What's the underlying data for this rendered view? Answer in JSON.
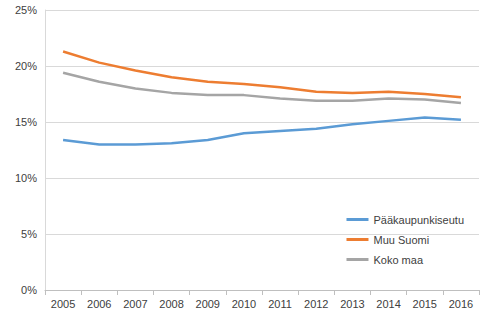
{
  "chart_data": {
    "type": "line",
    "categories": [
      "2005",
      "2006",
      "2007",
      "2008",
      "2009",
      "2010",
      "2011",
      "2012",
      "2013",
      "2014",
      "2015",
      "2016"
    ],
    "series": [
      {
        "name": "Pääkaupunkiseutu",
        "color": "#5b9bd5",
        "values": [
          13.4,
          13.0,
          13.0,
          13.1,
          13.4,
          14.0,
          14.2,
          14.4,
          14.8,
          15.1,
          15.4,
          15.2
        ]
      },
      {
        "name": "Muu Suomi",
        "color": "#ed7d31",
        "values": [
          21.3,
          20.3,
          19.6,
          19.0,
          18.6,
          18.4,
          18.1,
          17.7,
          17.6,
          17.7,
          17.5,
          17.2
        ]
      },
      {
        "name": "Koko maa",
        "color": "#a5a5a5",
        "values": [
          19.4,
          18.6,
          18.0,
          17.6,
          17.4,
          17.4,
          17.1,
          16.9,
          16.9,
          17.1,
          17.0,
          16.7
        ]
      }
    ],
    "ylim": [
      0,
      25
    ],
    "yticks": [
      {
        "value": 0,
        "label": "0%"
      },
      {
        "value": 5,
        "label": "5%"
      },
      {
        "value": 10,
        "label": "10%"
      },
      {
        "value": 15,
        "label": "15%"
      },
      {
        "value": 20,
        "label": "20%"
      },
      {
        "value": 25,
        "label": "25%"
      }
    ],
    "grid": true,
    "legend": "lower right"
  }
}
